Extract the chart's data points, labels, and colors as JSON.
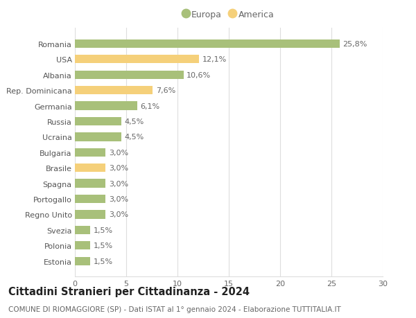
{
  "categories": [
    "Romania",
    "USA",
    "Albania",
    "Rep. Dominicana",
    "Germania",
    "Russia",
    "Ucraina",
    "Bulgaria",
    "Brasile",
    "Spagna",
    "Portogallo",
    "Regno Unito",
    "Svezia",
    "Polonia",
    "Estonia"
  ],
  "values": [
    25.8,
    12.1,
    10.6,
    7.6,
    6.1,
    4.5,
    4.5,
    3.0,
    3.0,
    3.0,
    3.0,
    3.0,
    1.5,
    1.5,
    1.5
  ],
  "labels": [
    "25,8%",
    "12,1%",
    "10,6%",
    "7,6%",
    "6,1%",
    "4,5%",
    "4,5%",
    "3,0%",
    "3,0%",
    "3,0%",
    "3,0%",
    "3,0%",
    "1,5%",
    "1,5%",
    "1,5%"
  ],
  "colors": [
    "#a8c07a",
    "#f5d07a",
    "#a8c07a",
    "#f5d07a",
    "#a8c07a",
    "#a8c07a",
    "#a8c07a",
    "#a8c07a",
    "#f5d07a",
    "#a8c07a",
    "#a8c07a",
    "#a8c07a",
    "#a8c07a",
    "#a8c07a",
    "#a8c07a"
  ],
  "europa_color": "#a8c07a",
  "america_color": "#f5d07a",
  "xlim": [
    0,
    30
  ],
  "xticks": [
    0,
    5,
    10,
    15,
    20,
    25,
    30
  ],
  "title": "Cittadini Stranieri per Cittadinanza - 2024",
  "subtitle": "COMUNE DI RIOMAGGIORE (SP) - Dati ISTAT al 1° gennaio 2024 - Elaborazione TUTTITALIA.IT",
  "legend_europa": "Europa",
  "legend_america": "America",
  "background_color": "#ffffff",
  "grid_color": "#dddddd",
  "bar_height": 0.55,
  "label_fontsize": 8,
  "tick_fontsize": 8,
  "title_fontsize": 10.5,
  "subtitle_fontsize": 7.5
}
